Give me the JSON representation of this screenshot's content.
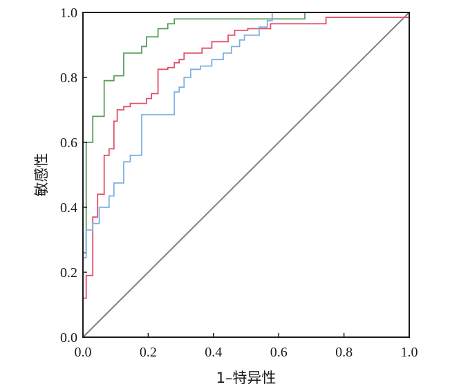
{
  "chart_data": {
    "type": "line",
    "title": "",
    "xlabel": "1–特异性",
    "ylabel": "敏感性",
    "xlim": [
      0,
      1
    ],
    "ylim": [
      0,
      1
    ],
    "xticks": [
      "0.0",
      "0.2",
      "0.4",
      "0.6",
      "0.8",
      "1.0"
    ],
    "yticks": [
      "0.0",
      "0.2",
      "0.4",
      "0.6",
      "0.8",
      "1.0"
    ],
    "grid": false,
    "legend": "none",
    "series": [
      {
        "color": "#5a9e5a",
        "points": [
          [
            0,
            0
          ],
          [
            0,
            0.26
          ],
          [
            0.01,
            0.26
          ],
          [
            0.01,
            0.6
          ],
          [
            0.03,
            0.6
          ],
          [
            0.03,
            0.68
          ],
          [
            0.065,
            0.68
          ],
          [
            0.065,
            0.79
          ],
          [
            0.095,
            0.79
          ],
          [
            0.095,
            0.805
          ],
          [
            0.125,
            0.805
          ],
          [
            0.125,
            0.875
          ],
          [
            0.18,
            0.875
          ],
          [
            0.18,
            0.895
          ],
          [
            0.195,
            0.895
          ],
          [
            0.195,
            0.925
          ],
          [
            0.23,
            0.925
          ],
          [
            0.23,
            0.95
          ],
          [
            0.26,
            0.95
          ],
          [
            0.26,
            0.965
          ],
          [
            0.28,
            0.965
          ],
          [
            0.28,
            0.98
          ],
          [
            0.68,
            0.98
          ],
          [
            0.68,
            1.0
          ],
          [
            1,
            1
          ]
        ]
      },
      {
        "color": "#e0506a",
        "points": [
          [
            0,
            0
          ],
          [
            0,
            0.12
          ],
          [
            0.01,
            0.12
          ],
          [
            0.01,
            0.19
          ],
          [
            0.03,
            0.19
          ],
          [
            0.03,
            0.37
          ],
          [
            0.045,
            0.37
          ],
          [
            0.045,
            0.44
          ],
          [
            0.065,
            0.44
          ],
          [
            0.065,
            0.56
          ],
          [
            0.08,
            0.56
          ],
          [
            0.08,
            0.58
          ],
          [
            0.095,
            0.58
          ],
          [
            0.095,
            0.665
          ],
          [
            0.105,
            0.665
          ],
          [
            0.105,
            0.7
          ],
          [
            0.125,
            0.7
          ],
          [
            0.125,
            0.71
          ],
          [
            0.145,
            0.71
          ],
          [
            0.145,
            0.72
          ],
          [
            0.195,
            0.72
          ],
          [
            0.195,
            0.735
          ],
          [
            0.21,
            0.735
          ],
          [
            0.21,
            0.75
          ],
          [
            0.23,
            0.75
          ],
          [
            0.23,
            0.825
          ],
          [
            0.26,
            0.825
          ],
          [
            0.26,
            0.83
          ],
          [
            0.28,
            0.83
          ],
          [
            0.28,
            0.845
          ],
          [
            0.295,
            0.845
          ],
          [
            0.295,
            0.855
          ],
          [
            0.31,
            0.855
          ],
          [
            0.31,
            0.875
          ],
          [
            0.365,
            0.875
          ],
          [
            0.365,
            0.89
          ],
          [
            0.395,
            0.89
          ],
          [
            0.395,
            0.91
          ],
          [
            0.445,
            0.91
          ],
          [
            0.445,
            0.93
          ],
          [
            0.465,
            0.93
          ],
          [
            0.465,
            0.945
          ],
          [
            0.505,
            0.945
          ],
          [
            0.505,
            0.95
          ],
          [
            0.575,
            0.95
          ],
          [
            0.575,
            0.965
          ],
          [
            0.745,
            0.965
          ],
          [
            0.745,
            0.985
          ],
          [
            1,
            0.985
          ]
        ]
      },
      {
        "color": "#7fb0e0",
        "points": [
          [
            0,
            0
          ],
          [
            0,
            0.245
          ],
          [
            0.01,
            0.245
          ],
          [
            0.01,
            0.33
          ],
          [
            0.03,
            0.33
          ],
          [
            0.03,
            0.35
          ],
          [
            0.05,
            0.35
          ],
          [
            0.05,
            0.4
          ],
          [
            0.08,
            0.4
          ],
          [
            0.08,
            0.435
          ],
          [
            0.095,
            0.435
          ],
          [
            0.095,
            0.475
          ],
          [
            0.125,
            0.475
          ],
          [
            0.125,
            0.54
          ],
          [
            0.145,
            0.54
          ],
          [
            0.145,
            0.56
          ],
          [
            0.18,
            0.56
          ],
          [
            0.18,
            0.685
          ],
          [
            0.28,
            0.685
          ],
          [
            0.28,
            0.755
          ],
          [
            0.295,
            0.755
          ],
          [
            0.295,
            0.77
          ],
          [
            0.31,
            0.77
          ],
          [
            0.31,
            0.8
          ],
          [
            0.33,
            0.8
          ],
          [
            0.33,
            0.825
          ],
          [
            0.36,
            0.825
          ],
          [
            0.36,
            0.835
          ],
          [
            0.395,
            0.835
          ],
          [
            0.395,
            0.855
          ],
          [
            0.43,
            0.855
          ],
          [
            0.43,
            0.875
          ],
          [
            0.455,
            0.875
          ],
          [
            0.455,
            0.895
          ],
          [
            0.48,
            0.895
          ],
          [
            0.48,
            0.915
          ],
          [
            0.495,
            0.915
          ],
          [
            0.495,
            0.93
          ],
          [
            0.54,
            0.93
          ],
          [
            0.54,
            0.955
          ],
          [
            0.565,
            0.955
          ],
          [
            0.565,
            0.975
          ],
          [
            0.58,
            0.975
          ],
          [
            0.58,
            1.0
          ],
          [
            1,
            1
          ]
        ]
      }
    ],
    "reference_line": {
      "color": "#808080",
      "points": [
        [
          0,
          0
        ],
        [
          1,
          1
        ]
      ]
    }
  }
}
